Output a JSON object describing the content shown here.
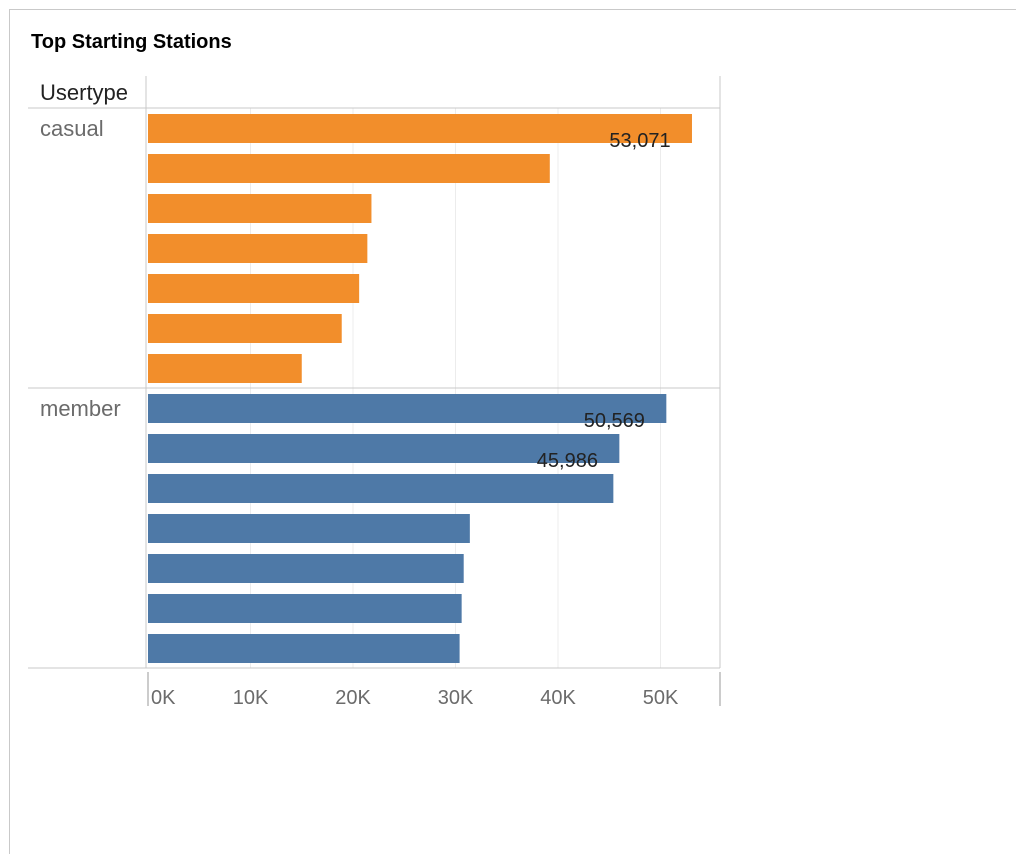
{
  "title": "Top Starting Stations",
  "chart_data": {
    "type": "bar",
    "orientation": "horizontal",
    "row_header": "Usertype",
    "xlim": [
      0,
      55000
    ],
    "x_ticks": [
      0,
      10000,
      20000,
      30000,
      40000,
      50000
    ],
    "x_tick_labels": [
      "0K",
      "10K",
      "20K",
      "30K",
      "40K",
      "50K"
    ],
    "grid": true,
    "groups": [
      {
        "name": "casual",
        "color": "#f28e2b",
        "values": [
          53071,
          39200,
          21800,
          21400,
          20600,
          18900,
          15000
        ],
        "labels": [
          "53,071",
          "",
          "",
          "",
          "",
          "",
          ""
        ]
      },
      {
        "name": "member",
        "color": "#4e79a7",
        "values": [
          50569,
          45986,
          45400,
          31400,
          30800,
          30600,
          30400
        ],
        "labels": [
          "50,569",
          "45,986",
          "",
          "",
          "",
          "",
          ""
        ]
      }
    ]
  }
}
